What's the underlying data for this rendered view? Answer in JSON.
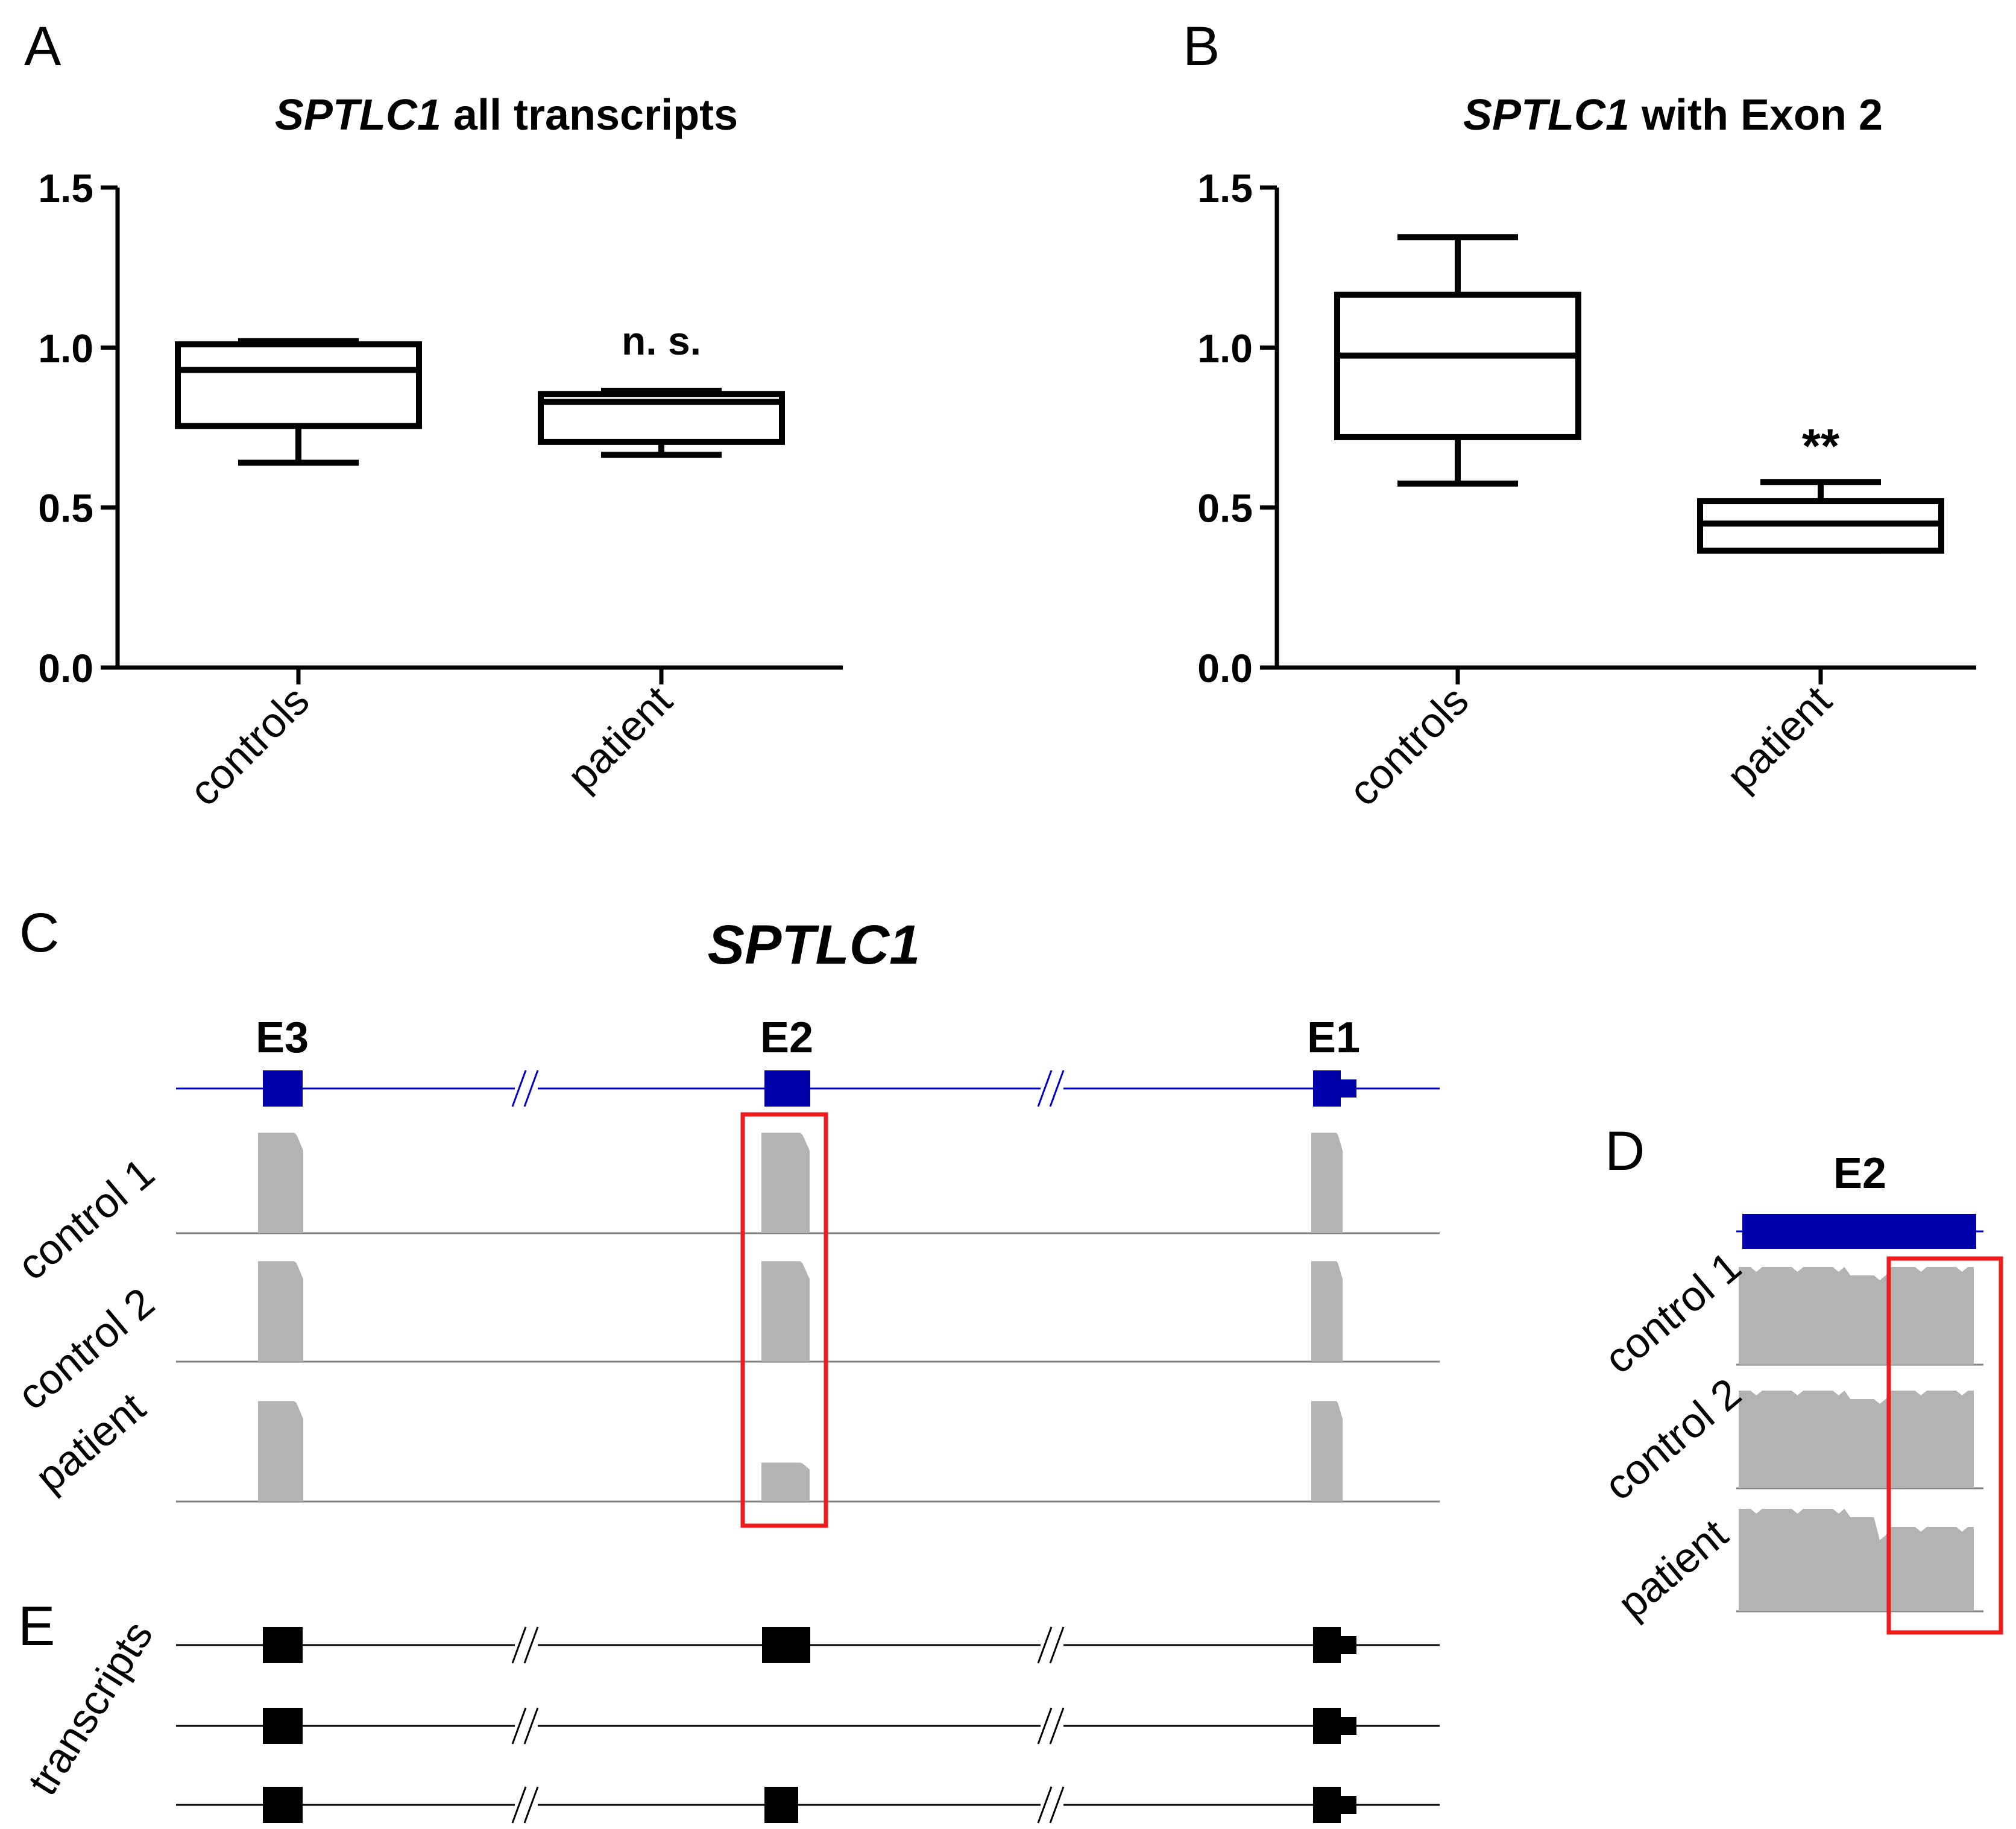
{
  "colors": {
    "exon": "#0000aa",
    "gene_line": "#0000cc",
    "coverage": "#b3b3b3",
    "baseline": "#808080",
    "highlight": "#ee1c1c",
    "ink": "#000000"
  },
  "chart_data": [
    {
      "panel": "A",
      "type": "box",
      "title_italic": "SPTLC1",
      "title_rest": " all transcripts",
      "categories": [
        "controls",
        "patient"
      ],
      "boxes": [
        {
          "name": "controls",
          "min": 0.64,
          "q1": 0.755,
          "median": 0.93,
          "q3": 1.01,
          "max": 1.02
        },
        {
          "name": "patient",
          "min": 0.665,
          "q1": 0.705,
          "median": 0.83,
          "q3": 0.855,
          "max": 0.865
        }
      ],
      "ylim": [
        0,
        1.5
      ],
      "yticks": [
        "0.0",
        "0.5",
        "1.0",
        "1.5"
      ],
      "annotation": "n. s.",
      "xlabel": "",
      "ylabel": ""
    },
    {
      "panel": "B",
      "type": "box",
      "title_italic": "SPTLC1",
      "title_rest": " with Exon 2",
      "categories": [
        "controls",
        "patient"
      ],
      "boxes": [
        {
          "name": "controls",
          "min": 0.575,
          "q1": 0.72,
          "median": 0.975,
          "q3": 1.165,
          "max": 1.345
        },
        {
          "name": "patient",
          "min": 0.365,
          "q1": 0.365,
          "median": 0.45,
          "q3": 0.52,
          "max": 0.58
        }
      ],
      "ylim": [
        0,
        1.5
      ],
      "yticks": [
        "0.0",
        "0.5",
        "1.0",
        "1.5"
      ],
      "annotation": "**",
      "xlabel": "",
      "ylabel": ""
    }
  ],
  "panel_c": {
    "letter": "C",
    "title": "SPTLC1",
    "exons": [
      "E3",
      "E2",
      "E1"
    ],
    "tracks": [
      {
        "label": "control 1",
        "coverage": [
          0.98,
          0.98,
          0.98
        ],
        "highlighted": "E2"
      },
      {
        "label": "control 2",
        "coverage": [
          0.98,
          0.98,
          0.98
        ],
        "highlighted": "E2"
      },
      {
        "label": "patient",
        "coverage": [
          0.98,
          0.38,
          0.98
        ],
        "highlighted": "E2"
      }
    ]
  },
  "panel_d": {
    "letter": "D",
    "exon": "E2",
    "tracks": [
      "control 1",
      "control 2",
      "patient"
    ],
    "highlight_region": [
      0.62,
      1.0
    ]
  },
  "panel_e": {
    "letter": "E",
    "label": "transcripts",
    "transcripts": [
      {
        "exons": [
          "E3",
          "E2",
          "E1"
        ]
      },
      {
        "exons": [
          "E3",
          "E1"
        ]
      },
      {
        "exons": [
          "E3",
          "E2 (short)",
          "E1"
        ]
      }
    ]
  }
}
